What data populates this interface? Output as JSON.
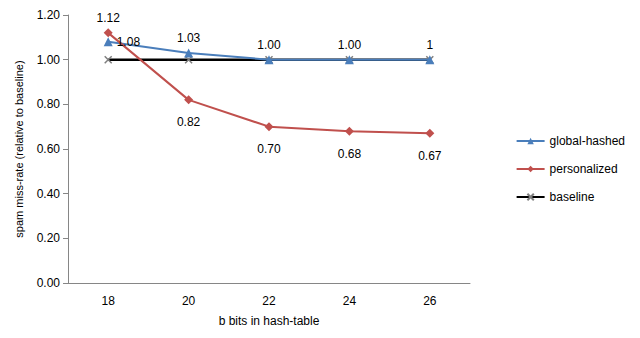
{
  "chart_data": {
    "type": "line",
    "x_label": "b bits in hash-table",
    "y_label": "spam miss-rate (relative to baseline)",
    "categories": [
      "18",
      "20",
      "22",
      "24",
      "26"
    ],
    "ylim": [
      0,
      1.2
    ],
    "yticks": [
      {
        "value": 0,
        "label": "0.00"
      },
      {
        "value": 0.2,
        "label": "0.20"
      },
      {
        "value": 0.4,
        "label": "0.40"
      },
      {
        "value": 0.6,
        "label": "0.60"
      },
      {
        "value": 0.8,
        "label": "0.80"
      },
      {
        "value": 1,
        "label": "1.00"
      },
      {
        "value": 1.2,
        "label": "1.20"
      }
    ],
    "grid": false,
    "legend": "right",
    "series": [
      {
        "name": "global-hashed",
        "color": "#4a7ebb",
        "marker": "triangle",
        "line_style": "solid",
        "data_labels": true,
        "values": [
          1.08,
          1.03,
          1.0,
          1.0,
          1
        ],
        "value_labels": [
          "1.08",
          "1.03",
          "1.00",
          "1.00",
          "1"
        ]
      },
      {
        "name": "personalized",
        "color": "#c0504d",
        "marker": "diamond",
        "line_style": "solid",
        "data_labels": true,
        "values": [
          1.12,
          0.82,
          0.7,
          0.68,
          0.67
        ],
        "value_labels": [
          "1.12",
          "0.82",
          "0.70",
          "0.68",
          "0.67"
        ]
      },
      {
        "name": "baseline",
        "color": "#000000",
        "marker": "x",
        "line_style": "solid",
        "data_labels": false,
        "values": [
          1,
          1,
          1,
          1,
          1
        ]
      }
    ]
  }
}
